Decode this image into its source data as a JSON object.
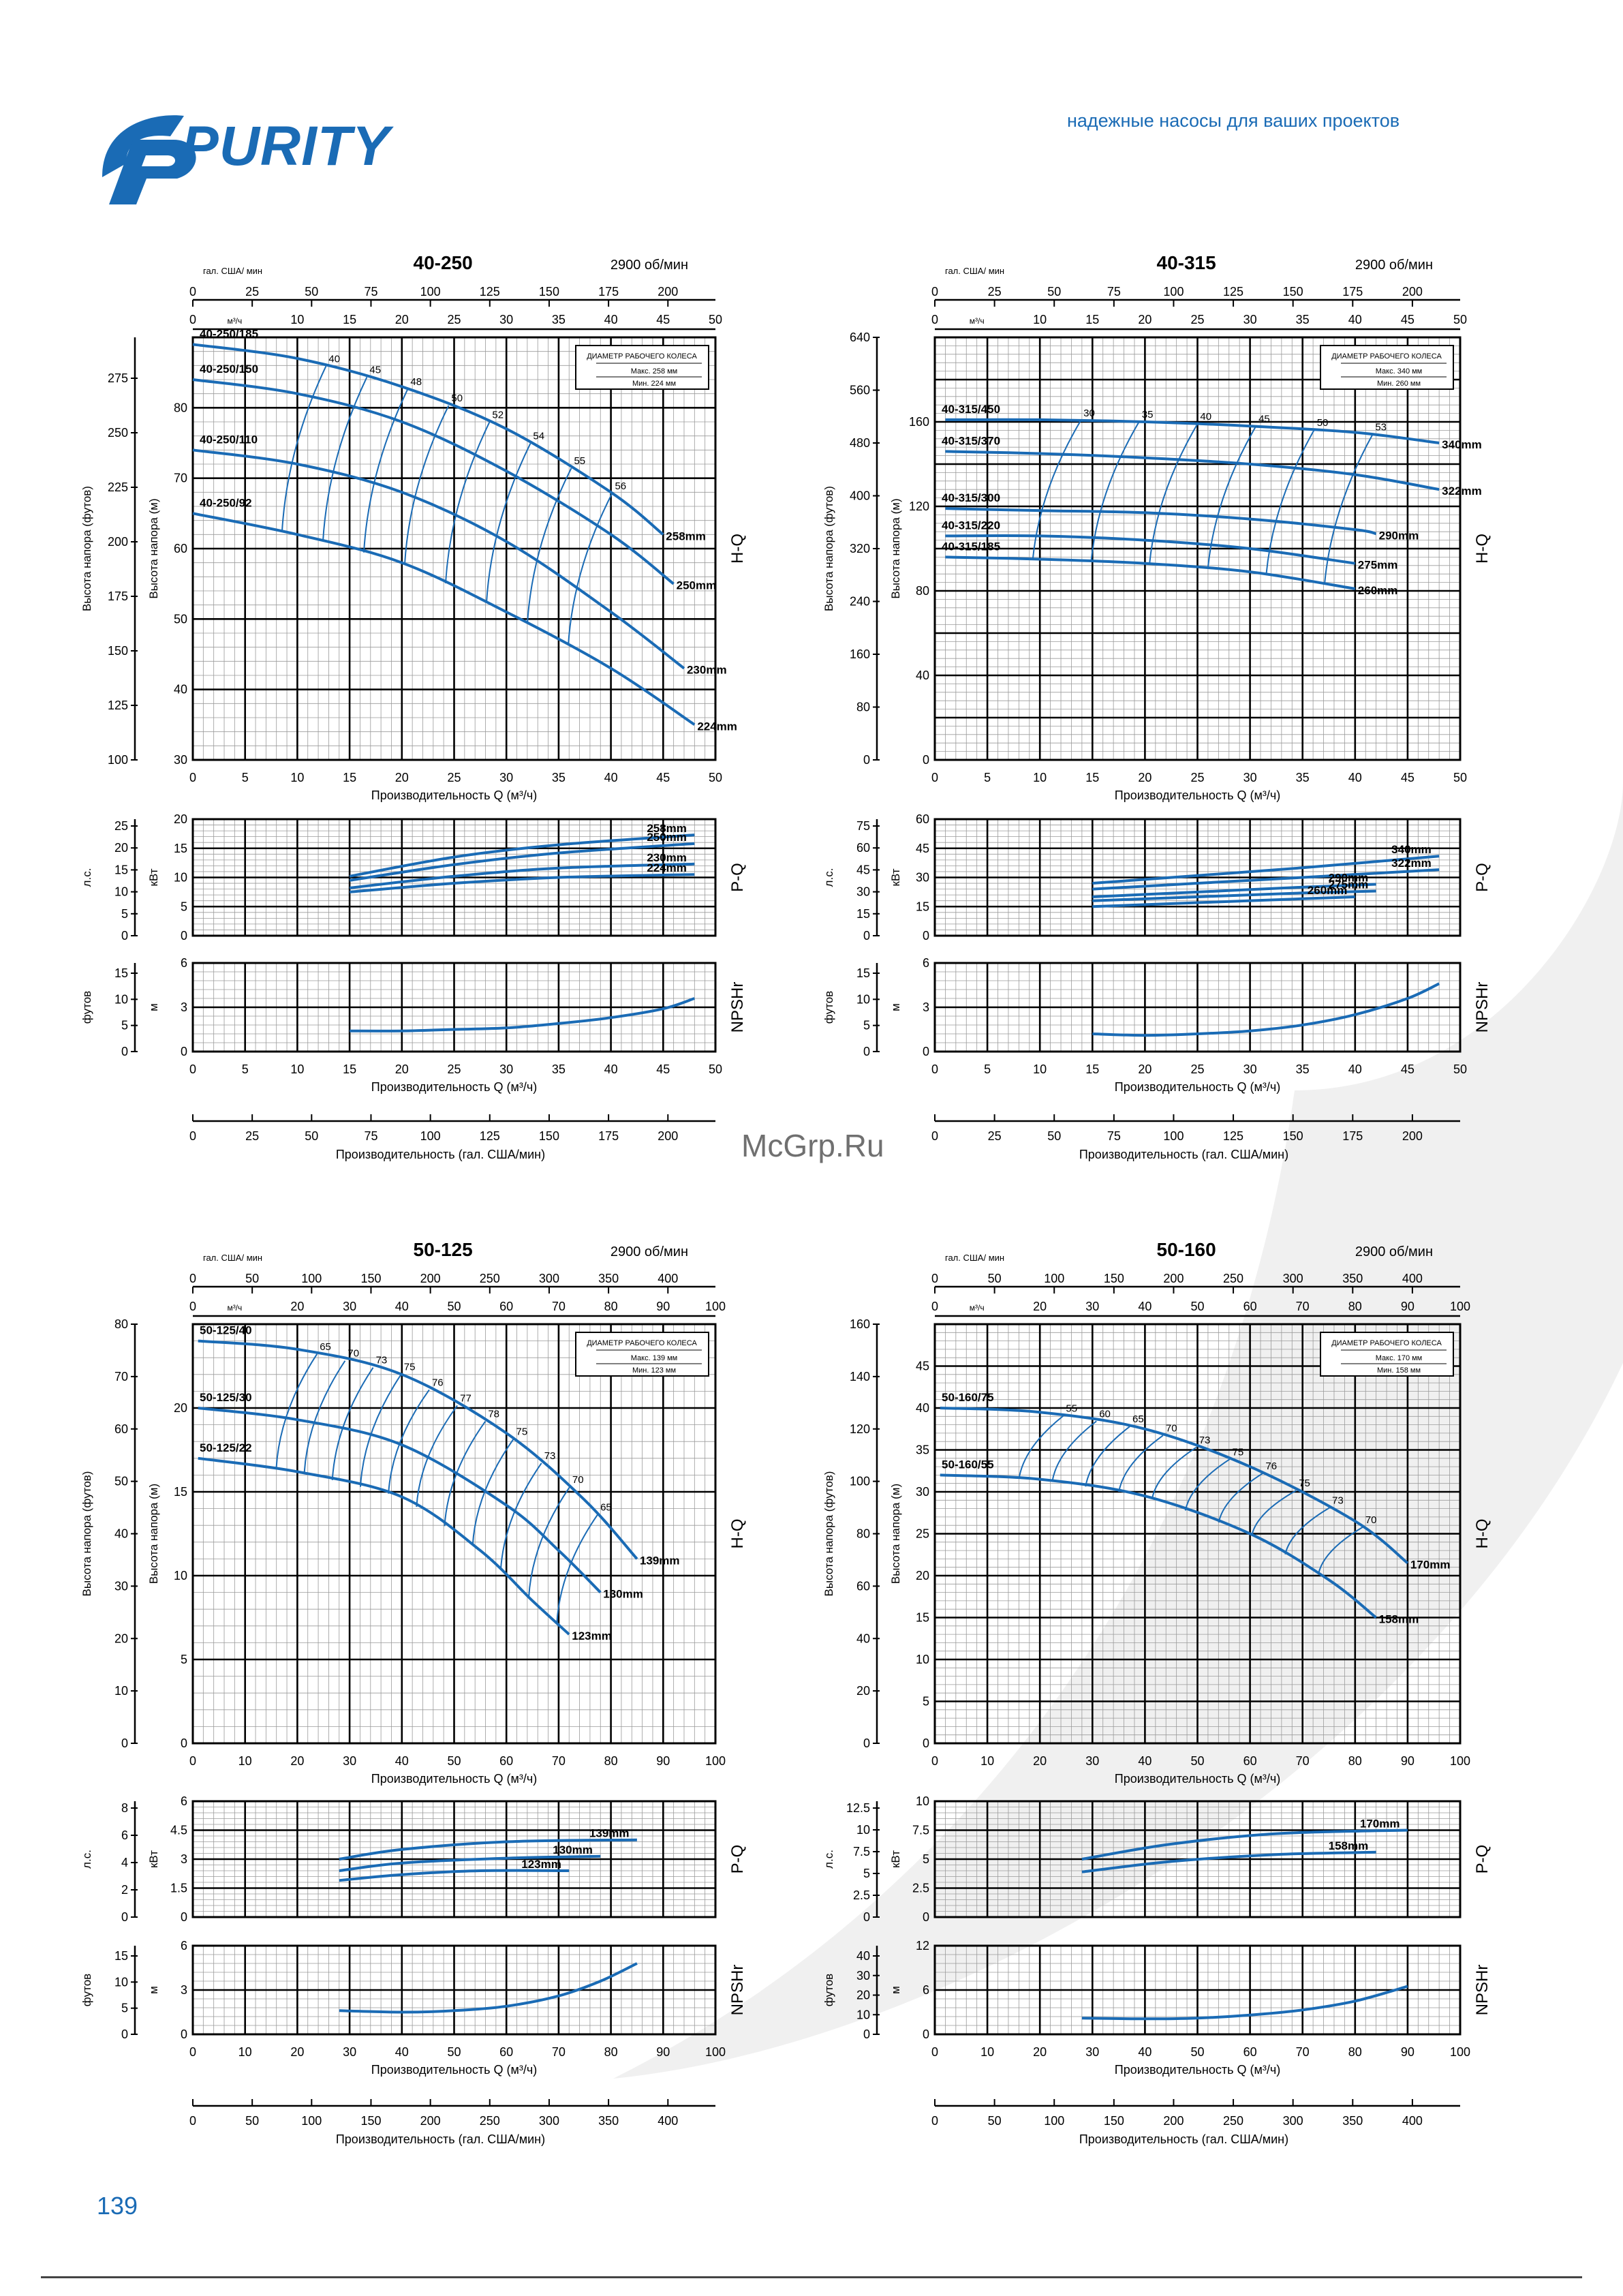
{
  "header": {
    "brand": "PURITY",
    "tagline": "надежные насосы для ваших проектов"
  },
  "page_number": "139",
  "watermark": "McGrp.Ru",
  "colors": {
    "curve": "#1a6bb5",
    "grid": "#000000",
    "brand": "#1a6bb5"
  },
  "chart_data": [
    {
      "type": "line",
      "title": "40-250",
      "speed": "2900 об/мин",
      "legend": [
        "ДИАМЕТР РАБОЧЕГО КОЛЕСА",
        "Макс. 258 мм",
        "Мин. 224 мм"
      ],
      "x_top_gpm_label": "гал. США/ мин",
      "x_top_gpm_ticks": [
        "0",
        "25",
        "50",
        "75",
        "100",
        "125",
        "150",
        "175",
        "200"
      ],
      "x_top_m3h_label": "м³/ч",
      "x_ticks": [
        "0",
        "5",
        "10",
        "15",
        "20",
        "25",
        "30",
        "35",
        "40",
        "45",
        "50"
      ],
      "xlabel": "Производительность Q (м³/ч)",
      "xlabel_gpm": "Производительность (гал. США/мин)",
      "xlim": [
        0,
        50
      ],
      "hq": {
        "ylabel_m": "Высота напора (м)",
        "ylabel_ft": "Высота напора (футов)",
        "ylim": [
          30,
          90
        ],
        "y_ticks_m": [
          "30",
          "40",
          "50",
          "60",
          "70",
          "80"
        ],
        "y_ticks_ft": [
          "100",
          "125",
          "150",
          "175",
          "200",
          "225",
          "250",
          "275"
        ],
        "side_label": "H-Q",
        "series": [
          {
            "name": "258mm",
            "x": [
              0,
              10,
              20,
              30,
              40,
              45
            ],
            "y": [
              89,
              87,
              83,
              77,
              68,
              62
            ]
          },
          {
            "name": "250mm",
            "x": [
              0,
              10,
              20,
              30,
              40,
              46
            ],
            "y": [
              84,
              82,
              78,
              71,
              62,
              55
            ]
          },
          {
            "name": "230mm",
            "x": [
              0,
              10,
              20,
              30,
              40,
              47
            ],
            "y": [
              74,
              72,
              68,
              61,
              51,
              43
            ]
          },
          {
            "name": "224mm",
            "x": [
              0,
              10,
              20,
              30,
              40,
              48
            ],
            "y": [
              65,
              62,
              58,
              51,
              43,
              35
            ]
          }
        ],
        "impeller_labels": [
          "40-250/185",
          "40-250/150",
          "40-250/110",
          "40-250/92"
        ],
        "efficiency_labels": [
          "40",
          "45",
          "48",
          "50",
          "52",
          "54",
          "55",
          "56"
        ]
      },
      "pq": {
        "ylabel_kw": "кВт",
        "ylabel_hp": "л.с.",
        "ylim": [
          0,
          20
        ],
        "y_ticks_kw": [
          "0",
          "5",
          "10",
          "15",
          "20"
        ],
        "y_ticks_hp": [
          "0",
          "5",
          "10",
          "15",
          "20",
          "25"
        ],
        "side_label": "P-Q",
        "series": [
          {
            "name": "258mm",
            "x": [
              15,
              25,
              35,
              48
            ],
            "y": [
              10.2,
              13.5,
              15.6,
              17.3
            ]
          },
          {
            "name": "250mm",
            "x": [
              15,
              25,
              35,
              48
            ],
            "y": [
              9.5,
              12.2,
              14.2,
              15.8
            ]
          },
          {
            "name": "230mm",
            "x": [
              15,
              25,
              35,
              48
            ],
            "y": [
              8.2,
              10.2,
              11.6,
              12.3
            ]
          },
          {
            "name": "224mm",
            "x": [
              15,
              25,
              35,
              48
            ],
            "y": [
              7.5,
              9.0,
              10.0,
              10.5
            ]
          }
        ]
      },
      "npsh": {
        "ylabel_m": "м",
        "ylabel_ft": "футов",
        "ylim": [
          0,
          6
        ],
        "y_ticks_m": [
          "0",
          "3",
          "6"
        ],
        "y_ticks_ft": [
          "0",
          "5",
          "10",
          "15"
        ],
        "side_label": "NPSHr",
        "series": [
          {
            "name": "NPSHr",
            "x": [
              15,
              20,
              25,
              30,
              35,
              40,
              45,
              48
            ],
            "y": [
              1.4,
              1.4,
              1.5,
              1.6,
              1.9,
              2.3,
              2.9,
              3.6
            ]
          }
        ]
      }
    },
    {
      "type": "line",
      "title": "40-315",
      "speed": "2900 об/мин",
      "legend": [
        "ДИАМЕТР РАБОЧЕГО КОЛЕСА",
        "Макс. 340 мм",
        "Мин. 260 мм"
      ],
      "x_top_gpm_label": "гал. США/ мин",
      "x_top_gpm_ticks": [
        "0",
        "25",
        "50",
        "75",
        "100",
        "125",
        "150",
        "175",
        "200"
      ],
      "x_top_m3h_label": "м³/ч",
      "x_ticks": [
        "0",
        "5",
        "10",
        "15",
        "20",
        "25",
        "30",
        "35",
        "40",
        "45",
        "50"
      ],
      "xlabel": "Производительность Q (м³/ч)",
      "xlabel_gpm": "Производительность (гал. США/мин)",
      "xlim": [
        0,
        50
      ],
      "hq": {
        "ylabel_m": "Высота напора (м)",
        "ylabel_ft": "Высота напора (футов)",
        "ylim": [
          0,
          200
        ],
        "y_ticks_m": [
          "0",
          "40",
          "80",
          "120",
          "160"
        ],
        "y_ticks_ft": [
          "0",
          "80",
          "160",
          "240",
          "320",
          "400",
          "480",
          "560",
          "640"
        ],
        "side_label": "H-Q",
        "series": [
          {
            "name": "340mm",
            "x": [
              1,
              10,
              20,
              30,
              40,
              48
            ],
            "y": [
              161,
              161,
              160,
              158,
              155,
              150
            ]
          },
          {
            "name": "322mm",
            "x": [
              1,
              10,
              20,
              30,
              40,
              48
            ],
            "y": [
              146,
              145,
              143,
              140,
              135,
              128
            ]
          },
          {
            "name": "290mm",
            "x": [
              1,
              10,
              20,
              30,
              40,
              42
            ],
            "y": [
              119,
              118,
              117,
              114,
              109,
              107
            ]
          },
          {
            "name": "275mm",
            "x": [
              1,
              10,
              20,
              30,
              40
            ],
            "y": [
              106,
              106,
              104,
              100,
              93
            ]
          },
          {
            "name": "260mm",
            "x": [
              1,
              10,
              20,
              30,
              40
            ],
            "y": [
              96,
              95,
              93,
              89,
              81
            ]
          }
        ],
        "impeller_labels": [
          "40-315/450",
          "40-315/370",
          "40-315/300",
          "40-315/220",
          "40-315/185"
        ],
        "efficiency_labels": [
          "30",
          "35",
          "40",
          "45",
          "50",
          "53"
        ]
      },
      "pq": {
        "ylabel_kw": "кВт",
        "ylabel_hp": "л.с.",
        "ylim": [
          0,
          60
        ],
        "y_ticks_kw": [
          "0",
          "15",
          "30",
          "45",
          "60"
        ],
        "y_ticks_hp": [
          "0",
          "15",
          "30",
          "45",
          "60",
          "75"
        ],
        "side_label": "P-Q",
        "series": [
          {
            "name": "340mm",
            "x": [
              15,
              25,
              35,
              48
            ],
            "y": [
              27,
              31,
              35,
              41
            ]
          },
          {
            "name": "322mm",
            "x": [
              15,
              25,
              35,
              48
            ],
            "y": [
              24,
              27,
              30,
              34
            ]
          },
          {
            "name": "290mm",
            "x": [
              15,
              25,
              35,
              42
            ],
            "y": [
              20,
              22.5,
              25,
              26.5
            ]
          },
          {
            "name": "275mm",
            "x": [
              15,
              25,
              35,
              42
            ],
            "y": [
              18,
              20,
              22,
              23
            ]
          },
          {
            "name": "260mm",
            "x": [
              15,
              25,
              35,
              40
            ],
            "y": [
              15,
              17,
              19,
              20
            ]
          }
        ]
      },
      "npsh": {
        "ylabel_m": "м",
        "ylabel_ft": "футов",
        "ylim": [
          0,
          6
        ],
        "y_ticks_m": [
          "0",
          "3",
          "6"
        ],
        "y_ticks_ft": [
          "0",
          "5",
          "10",
          "15"
        ],
        "side_label": "NPSHr",
        "series": [
          {
            "name": "NPSHr",
            "x": [
              15,
              20,
              25,
              30,
              35,
              40,
              45,
              48
            ],
            "y": [
              1.2,
              1.1,
              1.2,
              1.4,
              1.8,
              2.5,
              3.6,
              4.6
            ]
          }
        ]
      }
    },
    {
      "type": "line",
      "title": "50-125",
      "speed": "2900 об/мин",
      "legend": [
        "ДИАМЕТР РАБОЧЕГО КОЛЕСА",
        "Макс. 139 мм",
        "Мин. 123 мм"
      ],
      "x_top_gpm_label": "гал. США/ мин",
      "x_top_gpm_ticks": [
        "0",
        "50",
        "100",
        "150",
        "200",
        "250",
        "300",
        "350",
        "400"
      ],
      "x_top_m3h_label": "м³/ч",
      "x_ticks": [
        "0",
        "10",
        "20",
        "30",
        "40",
        "50",
        "60",
        "70",
        "80",
        "90",
        "100"
      ],
      "xlabel": "Производительность Q (м³/ч)",
      "xlabel_gpm": "Производительность (гал. США/мин)",
      "xlim": [
        0,
        100
      ],
      "hq": {
        "ylabel_m": "Высота напора (м)",
        "ylabel_ft": "Высота напора (футов)",
        "ylim": [
          0,
          25
        ],
        "y_ticks_m": [
          "0",
          "5",
          "10",
          "15",
          "20"
        ],
        "y_ticks_ft": [
          "0",
          "10",
          "20",
          "30",
          "40",
          "50",
          "60",
          "70",
          "80"
        ],
        "side_label": "H-Q",
        "series": [
          {
            "name": "139mm",
            "x": [
              1,
              20,
              40,
              60,
              75,
              85
            ],
            "y": [
              24,
              23.5,
              22,
              18.5,
              14.5,
              11
            ]
          },
          {
            "name": "130mm",
            "x": [
              1,
              20,
              40,
              60,
              70,
              78
            ],
            "y": [
              20,
              19.3,
              17.8,
              14.2,
              11.5,
              9
            ]
          },
          {
            "name": "123mm",
            "x": [
              1,
              20,
              40,
              55,
              65,
              72
            ],
            "y": [
              17,
              16.2,
              14.7,
              11.5,
              8.5,
              6.5
            ]
          }
        ],
        "impeller_labels": [
          "50-125/40",
          "50-125/30",
          "50-125/22"
        ],
        "efficiency_labels": [
          "65",
          "70",
          "73",
          "75",
          "76",
          "77",
          "78",
          "75",
          "73",
          "70",
          "65"
        ]
      },
      "pq": {
        "ylabel_kw": "кВт",
        "ylabel_hp": "л.с.",
        "ylim": [
          0,
          6
        ],
        "y_ticks_kw": [
          "0",
          "1.5",
          "3",
          "4.5",
          "6"
        ],
        "y_ticks_hp": [
          "0",
          "2",
          "4",
          "6",
          "8"
        ],
        "side_label": "P-Q",
        "series": [
          {
            "name": "139mm",
            "x": [
              28,
              40,
              60,
              85
            ],
            "y": [
              3.0,
              3.5,
              3.9,
              4.0
            ]
          },
          {
            "name": "130mm",
            "x": [
              28,
              40,
              60,
              78
            ],
            "y": [
              2.4,
              2.8,
              3.05,
              3.15
            ]
          },
          {
            "name": "123mm",
            "x": [
              28,
              40,
              55,
              72
            ],
            "y": [
              1.9,
              2.2,
              2.4,
              2.4
            ]
          }
        ]
      },
      "npsh": {
        "ylabel_m": "м",
        "ylabel_ft": "футов",
        "ylim": [
          0,
          6
        ],
        "y_ticks_m": [
          "0",
          "3",
          "6"
        ],
        "y_ticks_ft": [
          "0",
          "5",
          "10",
          "15"
        ],
        "side_label": "NPSHr",
        "series": [
          {
            "name": "NPSHr",
            "x": [
              28,
              40,
              50,
              60,
              70,
              78,
              85
            ],
            "y": [
              1.6,
              1.5,
              1.6,
              1.9,
              2.6,
              3.6,
              4.8
            ]
          }
        ]
      }
    },
    {
      "type": "line",
      "title": "50-160",
      "speed": "2900 об/мин",
      "legend": [
        "ДИАМЕТР РАБОЧЕГО КОЛЕСА",
        "Макс. 170 мм",
        "Мин. 158 мм"
      ],
      "x_top_gpm_label": "гал. США/ мин",
      "x_top_gpm_ticks": [
        "0",
        "50",
        "100",
        "150",
        "200",
        "250",
        "300",
        "350",
        "400"
      ],
      "x_top_m3h_label": "м³/ч",
      "x_ticks": [
        "0",
        "10",
        "20",
        "30",
        "40",
        "50",
        "60",
        "70",
        "80",
        "90",
        "100"
      ],
      "xlabel": "Производительность Q (м³/ч)",
      "xlabel_gpm": "Производительность (гал. США/мин)",
      "xlim": [
        0,
        100
      ],
      "hq": {
        "ylabel_m": "Высота напора (м)",
        "ylabel_ft": "Высота напора (футов)",
        "ylim": [
          0,
          50
        ],
        "y_ticks_m": [
          "0",
          "5",
          "10",
          "15",
          "20",
          "25",
          "30",
          "35",
          "40",
          "45"
        ],
        "y_ticks_ft": [
          "0",
          "20",
          "40",
          "60",
          "80",
          "100",
          "120",
          "140",
          "160"
        ],
        "side_label": "H-Q",
        "series": [
          {
            "name": "170mm",
            "x": [
              1,
              20,
              40,
              60,
              80,
              90
            ],
            "y": [
              40,
              39.5,
              37.5,
              33,
              26.5,
              21.5
            ]
          },
          {
            "name": "158mm",
            "x": [
              1,
              20,
              40,
              60,
              75,
              84
            ],
            "y": [
              32,
              31.5,
              29.5,
              25,
              19.5,
              15
            ]
          }
        ],
        "impeller_labels": [
          "50-160/75",
          "50-160/55"
        ],
        "efficiency_labels": [
          "55",
          "60",
          "65",
          "70",
          "73",
          "75",
          "76",
          "75",
          "73",
          "70"
        ]
      },
      "pq": {
        "ylabel_kw": "кВт",
        "ylabel_hp": "л.с.",
        "ylim": [
          0,
          10
        ],
        "y_ticks_kw": [
          "0",
          "2.5",
          "5",
          "7.5",
          "10"
        ],
        "y_ticks_hp": [
          "0",
          "2.5",
          "5",
          "7.5",
          "10",
          "12.5"
        ],
        "side_label": "P-Q",
        "series": [
          {
            "name": "170mm",
            "x": [
              28,
              45,
              65,
              90
            ],
            "y": [
              5.0,
              6.3,
              7.2,
              7.5
            ]
          },
          {
            "name": "158mm",
            "x": [
              28,
              45,
              65,
              84
            ],
            "y": [
              3.9,
              4.8,
              5.4,
              5.6
            ]
          }
        ]
      },
      "npsh": {
        "ylabel_m": "м",
        "ylabel_ft": "футов",
        "ylim": [
          0,
          12
        ],
        "y_ticks_m": [
          "0",
          "6",
          "12"
        ],
        "y_ticks_ft": [
          "0",
          "10",
          "20",
          "30",
          "40"
        ],
        "side_label": "NPSHr",
        "series": [
          {
            "name": "NPSHr",
            "x": [
              28,
              40,
              50,
              60,
              70,
              80,
              90
            ],
            "y": [
              2.2,
              2.1,
              2.2,
              2.6,
              3.3,
              4.5,
              6.5
            ]
          }
        ]
      }
    }
  ]
}
